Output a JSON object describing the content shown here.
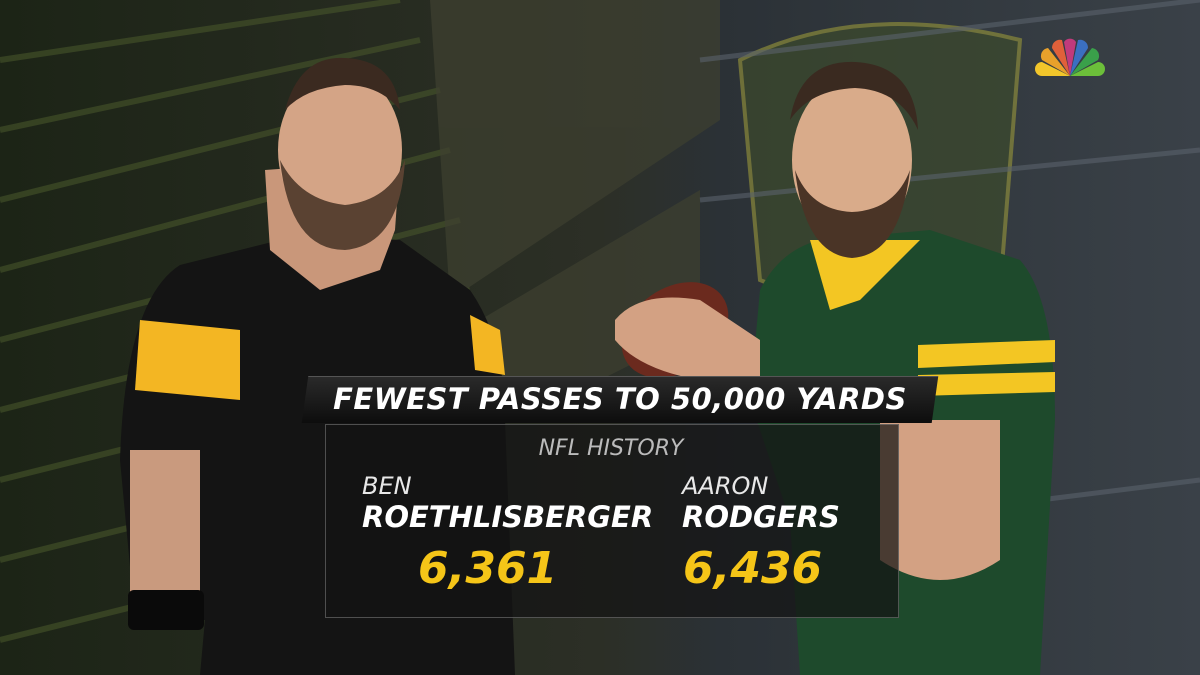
{
  "header": {
    "title": "FEWEST PASSES TO 50,000 YARDS",
    "subtitle": "NFL HISTORY"
  },
  "players": [
    {
      "first_name": "BEN",
      "last_name": "ROETHLISBERGER",
      "passes": "6,361"
    },
    {
      "first_name": "AARON",
      "last_name": "RODGERS",
      "passes": "6,436"
    }
  ]
}
